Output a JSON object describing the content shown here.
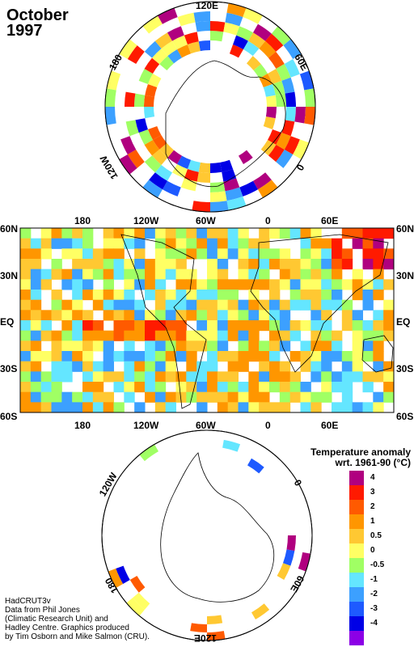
{
  "title": {
    "month": "October",
    "year": "1997"
  },
  "north_polar": {
    "labels": {
      "top": "120E",
      "left": "180",
      "right": "60E",
      "left_lower": "120W",
      "right_lower": "0"
    }
  },
  "main_map": {
    "top_labels": [
      "180",
      "120W",
      "60W",
      "0",
      "60E"
    ],
    "bottom_labels": [
      "180",
      "120W",
      "60W",
      "0",
      "60E"
    ],
    "left_labels": [
      "60N",
      "30N",
      "EQ",
      "30S",
      "60S"
    ],
    "right_labels": [
      "60N",
      "30N",
      "EQ",
      "30S",
      "60S"
    ]
  },
  "south_polar": {
    "labels": {
      "top_left": "120W",
      "top_right": "0",
      "bottom_left": "180",
      "bottom_right": "60E",
      "bottom": "120E"
    }
  },
  "legend": {
    "title_line1": "Temperature anomaly",
    "title_line2": "wrt. 1961-90 (°C)",
    "items": [
      {
        "value": "4",
        "color": "#b0007f"
      },
      {
        "value": "3",
        "color": "#ff1a00"
      },
      {
        "value": "2",
        "color": "#ff5a00"
      },
      {
        "value": "1",
        "color": "#ff9600"
      },
      {
        "value": "0.5",
        "color": "#ffc832"
      },
      {
        "value": "0",
        "color": "#ffff64"
      },
      {
        "value": "-0.5",
        "color": "#a0ff64"
      },
      {
        "value": "-1",
        "color": "#64e6ff"
      },
      {
        "value": "-2",
        "color": "#3ca0ff"
      },
      {
        "value": "-3",
        "color": "#1e5aff"
      },
      {
        "value": "-4",
        "color": "#0000e6"
      },
      {
        "value": "",
        "color": "#8c00e6"
      }
    ]
  },
  "credits": {
    "line1": "HadCRUT3v",
    "line2": "Data from Phil Jones",
    "line3": "(Climatic Research Unit) and",
    "line4": "Hadley Centre.  Graphics produced",
    "line5": "by Tim Osborn and Mike Salmon (CRU)."
  }
}
